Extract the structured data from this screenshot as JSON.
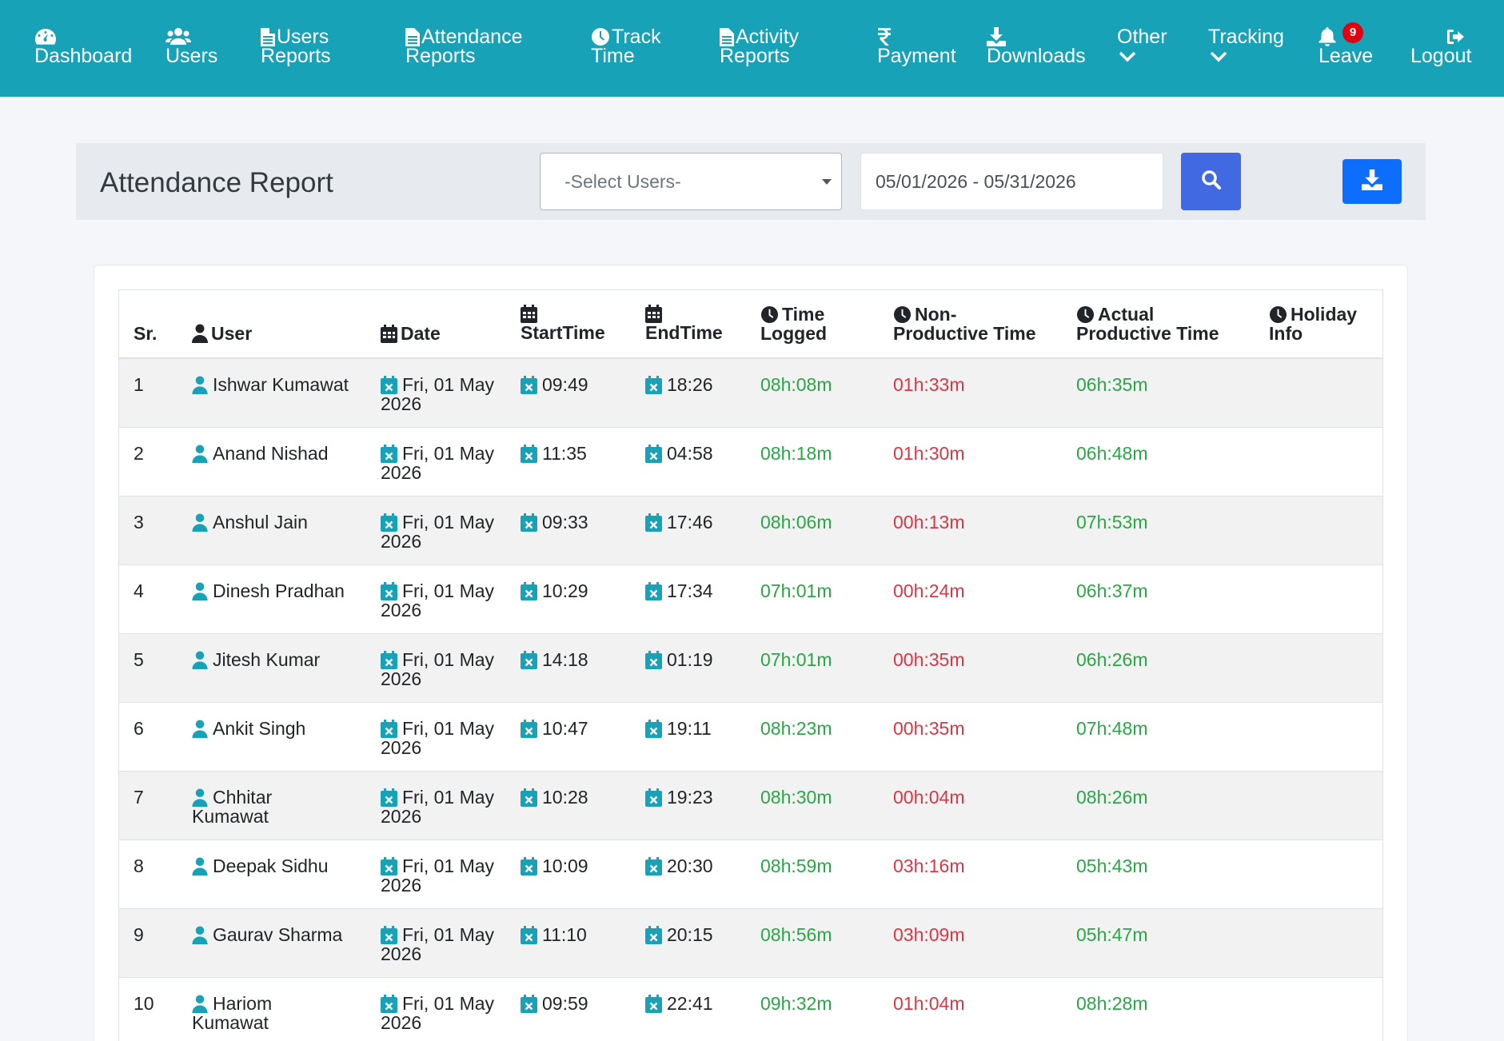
{
  "nav": {
    "dashboard": {
      "line1": "",
      "line2": "Dashboard",
      "icon": "tachometer-icon"
    },
    "users": {
      "line1": "",
      "line2": "Users",
      "icon": "users-icon"
    },
    "users_reports": {
      "line1": "Users",
      "line2": "Reports",
      "icon": "file-icon"
    },
    "attendance_reports": {
      "line1": "Attendance",
      "line2": "Reports",
      "icon": "file-icon"
    },
    "track_time": {
      "line1": "Track",
      "line2": "Time",
      "icon": "clock-icon"
    },
    "activity_reports": {
      "line1": "Activity",
      "line2": "Reports",
      "icon": "file-icon"
    },
    "payment": {
      "line1": "",
      "line2": "Payment",
      "icon": "rupee-icon"
    },
    "downloads": {
      "line1": "",
      "line2": "Downloads",
      "icon": "download-icon"
    },
    "other": {
      "line1": "Other",
      "icon": "chevron-down-icon"
    },
    "tracking": {
      "line1": "Tracking",
      "icon": "chevron-down-icon"
    },
    "leave": {
      "line2": "Leave",
      "badge": "9",
      "icon": "bell-icon"
    },
    "logout": {
      "line2": "Logout",
      "icon": "sign-out-icon"
    }
  },
  "header": {
    "title": "Attendance Report",
    "select_users_placeholder": "-Select Users-",
    "date_range": "05/01/2026 - 05/31/2026"
  },
  "table": {
    "columns": {
      "sr": "Sr.",
      "user": "User",
      "date": "Date",
      "start_time": "StartTime",
      "end_time": "EndTime",
      "time_logged_1": "Time",
      "time_logged_2": "Logged",
      "non_productive_1": "Non-",
      "non_productive_2": "Productive Time",
      "actual_productive_1": "Actual",
      "actual_productive_2": "Productive Time",
      "holiday_info_1": "Holiday",
      "holiday_info_2": "Info"
    },
    "rows": [
      {
        "sr": "1",
        "user1": "Ishwar Kumawat",
        "user2": "",
        "date1": "Fri, 01 May",
        "date2": "2026",
        "start": "09:49",
        "end": "18:26",
        "logged": "08h:08m",
        "non_productive": "01h:33m",
        "productive": "06h:35m",
        "holiday": ""
      },
      {
        "sr": "2",
        "user1": "Anand Nishad",
        "user2": "",
        "date1": "Fri, 01 May",
        "date2": "2026",
        "start": "11:35",
        "end": "04:58",
        "logged": "08h:18m",
        "non_productive": "01h:30m",
        "productive": "06h:48m",
        "holiday": ""
      },
      {
        "sr": "3",
        "user1": "Anshul Jain",
        "user2": "",
        "date1": "Fri, 01 May",
        "date2": "2026",
        "start": "09:33",
        "end": "17:46",
        "logged": "08h:06m",
        "non_productive": "00h:13m",
        "productive": "07h:53m",
        "holiday": ""
      },
      {
        "sr": "4",
        "user1": "Dinesh Pradhan",
        "user2": "",
        "date1": "Fri, 01 May",
        "date2": "2026",
        "start": "10:29",
        "end": "17:34",
        "logged": "07h:01m",
        "non_productive": "00h:24m",
        "productive": "06h:37m",
        "holiday": ""
      },
      {
        "sr": "5",
        "user1": "Jitesh Kumar",
        "user2": "",
        "date1": "Fri, 01 May",
        "date2": "2026",
        "start": "14:18",
        "end": "01:19",
        "logged": "07h:01m",
        "non_productive": "00h:35m",
        "productive": "06h:26m",
        "holiday": ""
      },
      {
        "sr": "6",
        "user1": "Ankit Singh",
        "user2": "",
        "date1": "Fri, 01 May",
        "date2": "2026",
        "start": "10:47",
        "end": "19:11",
        "logged": "08h:23m",
        "non_productive": "00h:35m",
        "productive": "07h:48m",
        "holiday": ""
      },
      {
        "sr": "7",
        "user1": "Chhitar",
        "user2": "Kumawat",
        "date1": "Fri, 01 May",
        "date2": "2026",
        "start": "10:28",
        "end": "19:23",
        "logged": "08h:30m",
        "non_productive": "00h:04m",
        "productive": "08h:26m",
        "holiday": ""
      },
      {
        "sr": "8",
        "user1": "Deepak Sidhu",
        "user2": "",
        "date1": "Fri, 01 May",
        "date2": "2026",
        "start": "10:09",
        "end": "20:30",
        "logged": "08h:59m",
        "non_productive": "03h:16m",
        "productive": "05h:43m",
        "holiday": ""
      },
      {
        "sr": "9",
        "user1": "Gaurav Sharma",
        "user2": "",
        "date1": "Fri, 01 May",
        "date2": "2026",
        "start": "11:10",
        "end": "20:15",
        "logged": "08h:56m",
        "non_productive": "03h:09m",
        "productive": "05h:47m",
        "holiday": ""
      },
      {
        "sr": "10",
        "user1": "Hariom",
        "user2": "Kumawat",
        "date1": "Fri, 01 May",
        "date2": "2026",
        "start": "09:59",
        "end": "22:41",
        "logged": "09h:32m",
        "non_productive": "01h:04m",
        "productive": "08h:28m",
        "holiday": ""
      }
    ]
  },
  "colors": {
    "navbar": "#17a2b8",
    "accent_icon": "#17a2b8",
    "search_button": "#4169e1",
    "download_button": "#0d6efd",
    "positive": "#28a745",
    "negative": "#dc3545"
  }
}
